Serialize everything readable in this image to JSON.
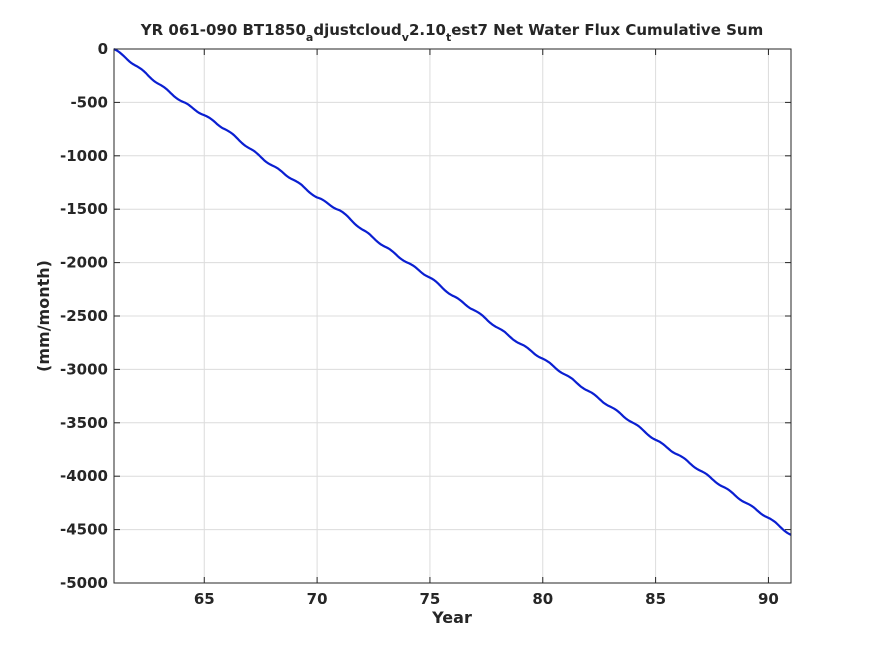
{
  "chart_data": {
    "type": "line",
    "title": {
      "pre": "YR 061-090 BT1850",
      "sub1": "a",
      "mid1": "djustcloud",
      "sub2": "v",
      "mid2": "2.10",
      "sub3": "t",
      "post": "est7 Net Water Flux Cumulative Sum"
    },
    "xlabel": "Year",
    "ylabel": "(mm/month)",
    "xlim": [
      61,
      91
    ],
    "ylim": [
      -5000,
      0
    ],
    "xticks": [
      65,
      70,
      75,
      80,
      85,
      90
    ],
    "yticks": [
      0,
      -500,
      -1000,
      -1500,
      -2000,
      -2500,
      -3000,
      -3500,
      -4000,
      -4500,
      -5000
    ],
    "grid": true,
    "series": [
      {
        "color": "#0a1fd1",
        "x": [
          61,
          62,
          63,
          64,
          65,
          66,
          67,
          68,
          69,
          70,
          71,
          72,
          73,
          74,
          75,
          76,
          77,
          78,
          79,
          80,
          81,
          82,
          83,
          84,
          85,
          86,
          87,
          88,
          89,
          90,
          91
        ],
        "y": [
          0,
          -160,
          -330,
          -490,
          -620,
          -760,
          -930,
          -1090,
          -1230,
          -1390,
          -1510,
          -1690,
          -1850,
          -2000,
          -2140,
          -2310,
          -2450,
          -2610,
          -2760,
          -2900,
          -3050,
          -3200,
          -3350,
          -3500,
          -3660,
          -3800,
          -3950,
          -4100,
          -4250,
          -4390,
          -4550
        ]
      }
    ]
  }
}
